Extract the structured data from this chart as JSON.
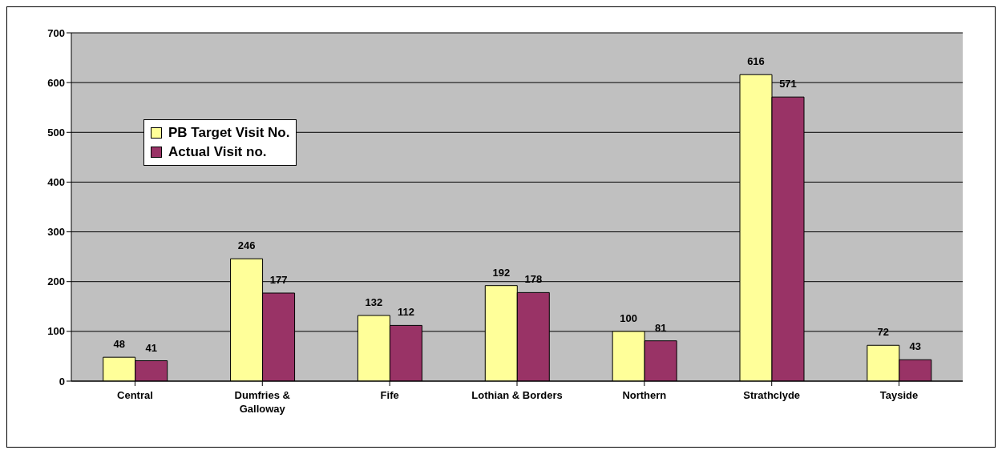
{
  "chart_data": {
    "type": "bar",
    "categories": [
      "Central",
      "Dumfries & Galloway",
      "Fife",
      "Lothian & Borders",
      "Northern",
      "Strathclyde",
      "Tayside"
    ],
    "series": [
      {
        "name": "PB Target Visit No.",
        "color": "#ffff99",
        "values": [
          48,
          246,
          132,
          192,
          100,
          616,
          72
        ]
      },
      {
        "name": "Actual Visit no.",
        "color": "#993366",
        "values": [
          41,
          177,
          112,
          178,
          81,
          571,
          43
        ]
      }
    ],
    "ylim": [
      0,
      700
    ],
    "yticks": [
      0,
      100,
      200,
      300,
      400,
      500,
      600,
      700
    ],
    "grid": "y",
    "legend": "top left",
    "data_labels": true
  }
}
